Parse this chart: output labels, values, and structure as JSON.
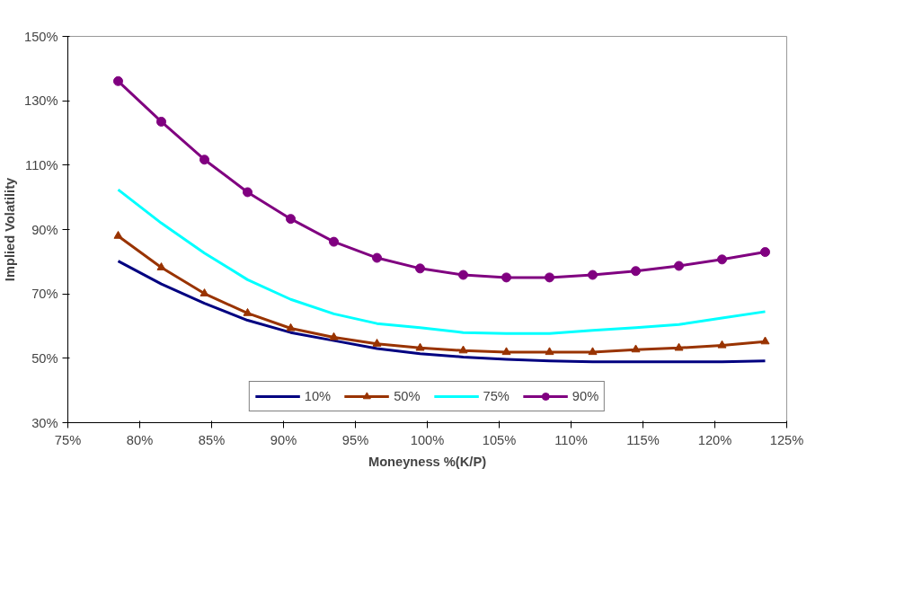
{
  "chart_data": {
    "type": "line",
    "xlabel": "Moneyness %(K/P)",
    "ylabel": "Implied Volatility",
    "x": [
      78.5,
      81.5,
      84.5,
      87.5,
      90.5,
      93.5,
      96.5,
      99.5,
      102.5,
      105.5,
      108.5,
      111.5,
      114.5,
      117.5,
      120.5,
      123.5
    ],
    "series": [
      {
        "name": "10%",
        "color": "#000080",
        "marker": "none",
        "values": [
          80.2,
          73.1,
          67.1,
          61.8,
          58.0,
          55.5,
          53.0,
          51.4,
          50.4,
          49.7,
          49.2,
          48.9,
          48.9,
          48.9,
          48.9,
          49.2
        ]
      },
      {
        "name": "50%",
        "color": "#993300",
        "marker": "triangle",
        "values": [
          88.0,
          78.2,
          70.1,
          64.0,
          59.3,
          56.5,
          54.5,
          53.2,
          52.4,
          51.9,
          51.9,
          51.9,
          52.7,
          53.2,
          54.0,
          55.2
        ]
      },
      {
        "name": "75%",
        "color": "#00ffff",
        "marker": "none",
        "values": [
          102.4,
          92.0,
          82.7,
          74.4,
          68.3,
          63.8,
          60.8,
          59.5,
          58.0,
          57.7,
          57.7,
          58.7,
          59.5,
          60.5,
          62.5,
          64.5
        ]
      },
      {
        "name": "90%",
        "color": "#800080",
        "marker": "circle",
        "values": [
          136.1,
          123.5,
          111.7,
          101.6,
          93.3,
          86.2,
          81.2,
          77.9,
          75.9,
          75.1,
          75.1,
          75.9,
          77.1,
          78.7,
          80.7,
          83.0
        ]
      }
    ],
    "xlim": [
      75,
      125
    ],
    "xticks": [
      {
        "value": 75,
        "label": "75%"
      },
      {
        "value": 80,
        "label": "80%"
      },
      {
        "value": 85,
        "label": "85%"
      },
      {
        "value": 90,
        "label": "90%"
      },
      {
        "value": 95,
        "label": "95%"
      },
      {
        "value": 100,
        "label": "100%"
      },
      {
        "value": 105,
        "label": "105%"
      },
      {
        "value": 110,
        "label": "110%"
      },
      {
        "value": 115,
        "label": "115%"
      },
      {
        "value": 120,
        "label": "120%"
      },
      {
        "value": 125,
        "label": "125%"
      }
    ],
    "ylim": [
      30,
      150
    ],
    "yticks": [
      {
        "value": 30,
        "label": "30%"
      },
      {
        "value": 50,
        "label": "50%"
      },
      {
        "value": 70,
        "label": "70%"
      },
      {
        "value": 90,
        "label": "90%"
      },
      {
        "value": 110,
        "label": "110%"
      },
      {
        "value": 130,
        "label": "130%"
      },
      {
        "value": 150,
        "label": "150%"
      }
    ],
    "grid": false,
    "legend": "bottom",
    "line_style": "solid"
  }
}
